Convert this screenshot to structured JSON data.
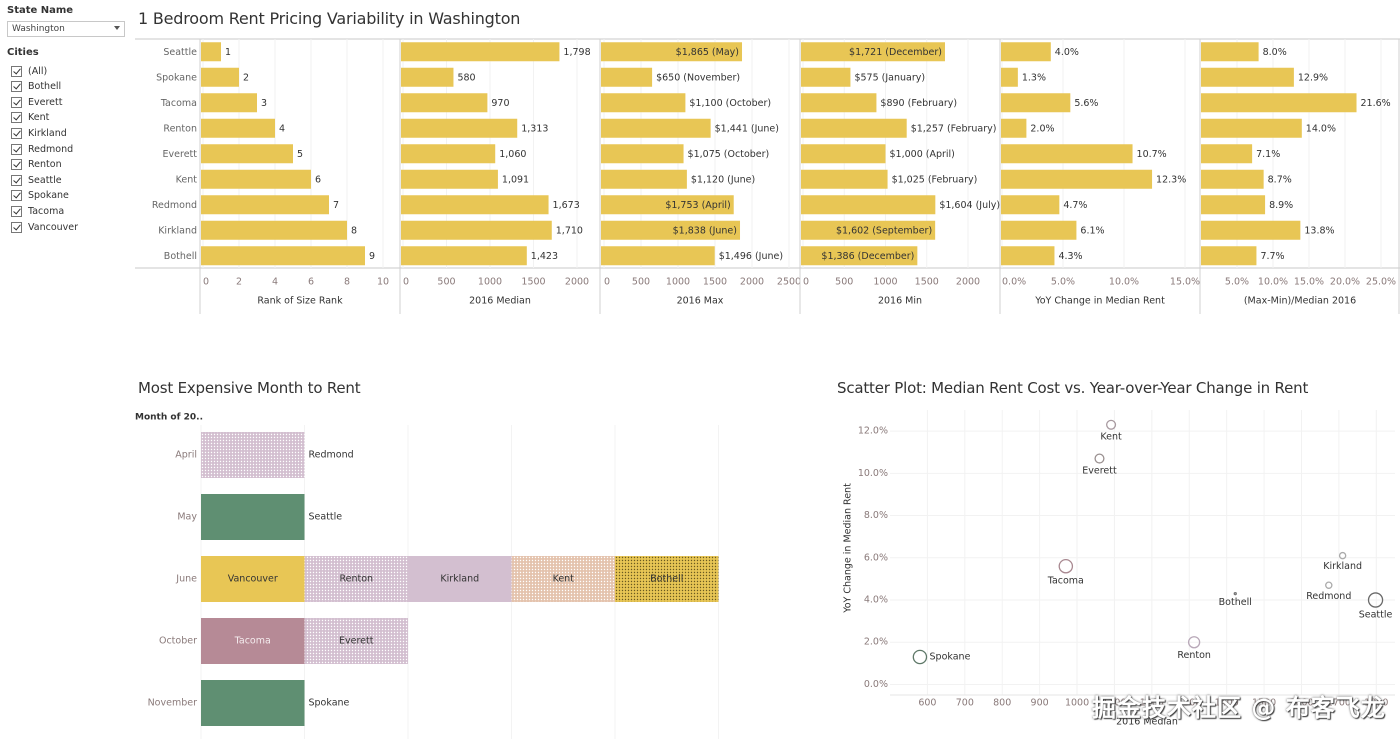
{
  "filters": {
    "state_label": "State Name",
    "state_value": "Washington",
    "cities_label": "Cities",
    "cities": [
      "(All)",
      "Bothell",
      "Everett",
      "Kent",
      "Kirkland",
      "Redmond",
      "Renton",
      "Seattle",
      "Spokane",
      "Tacoma",
      "Vancouver"
    ],
    "cities_checked": [
      true,
      true,
      true,
      true,
      true,
      true,
      true,
      true,
      true,
      true,
      true
    ]
  },
  "dashboard": {
    "top_title": "1 Bedroom Rent Pricing Variability in Washington",
    "month_title": "Most Expensive Month to Rent",
    "scatter_title": "Scatter Plot: Median Rent Cost vs. Year-over-Year Change in Rent"
  },
  "colors": {
    "bar": "#e8c655",
    "axis_text": "#8a7a7a",
    "green": "#5f8f72",
    "lilac": "#d3bfd0",
    "mauve": "#b68a96",
    "peach": "#e4c3ad"
  },
  "watermark": "掘金技术社区 @ 布客飞龙",
  "chart_data": [
    {
      "id": "variability",
      "type": "bar",
      "orientation": "horizontal",
      "title": "1 Bedroom Rent Pricing Variability in Washington",
      "categories": [
        "Seattle",
        "Spokane",
        "Tacoma",
        "Renton",
        "Everett",
        "Kent",
        "Redmond",
        "Kirkland",
        "Bothell"
      ],
      "panels": [
        {
          "xlabel": "Rank of Size Rank",
          "xlim": [
            0,
            10
          ],
          "ticks": [
            "0",
            "2",
            "4",
            "6",
            "8",
            "10"
          ],
          "tick_values": [
            0,
            2,
            4,
            6,
            8,
            10
          ],
          "values": [
            1,
            2,
            3,
            4,
            5,
            6,
            7,
            8,
            9
          ],
          "labels": [
            "1",
            "2",
            "3",
            "4",
            "5",
            "6",
            "7",
            "8",
            "9"
          ]
        },
        {
          "xlabel": "2016 Median",
          "xlim": [
            0,
            2000
          ],
          "ticks": [
            "0",
            "500",
            "1000",
            "1500",
            "2000"
          ],
          "tick_values": [
            0,
            500,
            1000,
            1500,
            2000
          ],
          "values": [
            1798,
            580,
            970,
            1313,
            1060,
            1091,
            1673,
            1710,
            1423
          ],
          "labels": [
            "1,798",
            "580",
            "970",
            "1,313",
            "1,060",
            "1,091",
            "1,673",
            "1,710",
            "1,423"
          ]
        },
        {
          "xlabel": "2016 Max",
          "xlim": [
            0,
            2500
          ],
          "ticks": [
            "0",
            "500",
            "1000",
            "1500",
            "2000",
            "2500"
          ],
          "tick_values": [
            0,
            500,
            1000,
            1500,
            2000,
            2500
          ],
          "values": [
            1865,
            650,
            1100,
            1441,
            1075,
            1120,
            1753,
            1838,
            1496
          ],
          "labels": [
            "$1,865 (May)",
            "$650 (November)",
            "$1,100 (October)",
            "$1,441 (June)",
            "$1,075 (October)",
            "$1,120 (June)",
            "$1,753 (April)",
            "$1,838 (June)",
            "$1,496 (June)"
          ],
          "inside": [
            true,
            false,
            false,
            false,
            false,
            false,
            true,
            true,
            false
          ]
        },
        {
          "xlabel": "2016 Min",
          "xlim": [
            0,
            2000
          ],
          "ticks": [
            "0",
            "500",
            "1000",
            "1500",
            "2000"
          ],
          "tick_values": [
            0,
            500,
            1000,
            1500,
            2000
          ],
          "values": [
            1721,
            575,
            890,
            1257,
            1000,
            1025,
            1604,
            1602,
            1386
          ],
          "labels": [
            "$1,721 (December)",
            "$575 (January)",
            "$890 (February)",
            "$1,257 (February)",
            "$1,000 (April)",
            "$1,025 (February)",
            "$1,604 (July)",
            "$1,602 (September)",
            "$1,386 (December)"
          ],
          "inside": [
            true,
            false,
            false,
            false,
            false,
            false,
            false,
            true,
            true
          ]
        },
        {
          "xlabel": "YoY Change in Median Rent",
          "xlim": [
            0,
            15
          ],
          "ticks": [
            "0.0%",
            "5.0%",
            "10.0%",
            "15.0%"
          ],
          "tick_values": [
            0,
            5,
            10,
            15
          ],
          "values": [
            4.0,
            1.3,
            5.6,
            2.0,
            10.7,
            12.3,
            4.7,
            6.1,
            4.3
          ],
          "labels": [
            "4.0%",
            "1.3%",
            "5.6%",
            "2.0%",
            "10.7%",
            "12.3%",
            "4.7%",
            "6.1%",
            "4.3%"
          ]
        },
        {
          "xlabel": "(Max-Min)/Median 2016",
          "xlim": [
            0,
            25
          ],
          "ticks": [
            "5.0%",
            "10.0%",
            "15.0%",
            "20.0%",
            "25.0%"
          ],
          "tick_values": [
            5,
            10,
            15,
            20,
            25
          ],
          "values": [
            8.0,
            12.9,
            21.6,
            14.0,
            7.1,
            8.7,
            8.9,
            13.8,
            7.7
          ],
          "labels": [
            "8.0%",
            "12.9%",
            "21.6%",
            "14.0%",
            "7.1%",
            "8.7%",
            "8.9%",
            "13.8%",
            "7.7%"
          ]
        }
      ]
    },
    {
      "id": "month",
      "type": "bar",
      "stacked": true,
      "title": "Most Expensive Month to Rent",
      "row_header": "Month of 20..",
      "categories": [
        "April",
        "May",
        "June",
        "October",
        "November"
      ],
      "rows": [
        {
          "month": "April",
          "segments": [
            {
              "city": "Redmond",
              "color": "lilac",
              "label_outside": true,
              "pattern": true
            }
          ]
        },
        {
          "month": "May",
          "segments": [
            {
              "city": "Seattle",
              "color": "green",
              "label_outside": true
            }
          ]
        },
        {
          "month": "June",
          "segments": [
            {
              "city": "Vancouver",
              "color": "bar"
            },
            {
              "city": "Renton",
              "color": "lilac",
              "pattern": true
            },
            {
              "city": "Kirkland",
              "color": "lilac"
            },
            {
              "city": "Kent",
              "color": "peach",
              "pattern": true
            },
            {
              "city": "Bothell",
              "color": "bar",
              "pattern": true
            }
          ]
        },
        {
          "month": "October",
          "segments": [
            {
              "city": "Tacoma",
              "color": "mauve",
              "light_text": true
            },
            {
              "city": "Everett",
              "color": "lilac",
              "pattern": true
            }
          ]
        },
        {
          "month": "November",
          "segments": [
            {
              "city": "Spokane",
              "color": "green",
              "label_outside": true
            }
          ]
        }
      ]
    },
    {
      "id": "scatter",
      "type": "scatter",
      "title": "Scatter Plot: Median Rent Cost vs. Year-over-Year Change in Rent",
      "xlabel": "2016 Median",
      "ylabel": "YoY Change in Median Rent",
      "xlim": [
        500,
        1850
      ],
      "ylim": [
        -0.5,
        13
      ],
      "xticks": [
        "600",
        "700",
        "800",
        "900",
        "1000",
        "1100",
        "1200",
        "1300",
        "1400",
        "1500",
        "1600",
        "1700",
        "1800"
      ],
      "xtick_values": [
        600,
        700,
        800,
        900,
        1000,
        1100,
        1200,
        1300,
        1400,
        1500,
        1600,
        1700,
        1800
      ],
      "yticks": [
        "0.0%",
        "2.0%",
        "4.0%",
        "6.0%",
        "8.0%",
        "10.0%",
        "12.0%"
      ],
      "ytick_values": [
        0,
        2,
        4,
        6,
        8,
        10,
        12
      ],
      "points": [
        {
          "label": "Kent",
          "x": 1091,
          "y": 12.3,
          "size": 2,
          "color": "#a89aa0",
          "label_pos": "below"
        },
        {
          "label": "Everett",
          "x": 1060,
          "y": 10.7,
          "size": 2,
          "color": "#9a9090",
          "label_pos": "below"
        },
        {
          "label": "Tacoma",
          "x": 970,
          "y": 5.6,
          "size": 3,
          "color": "#a88890",
          "label_pos": "below"
        },
        {
          "label": "Spokane",
          "x": 580,
          "y": 1.3,
          "size": 3,
          "color": "#5e7868",
          "label_pos": "right"
        },
        {
          "label": "Renton",
          "x": 1313,
          "y": 2.0,
          "size": 2.5,
          "color": "#b8a8b8",
          "label_pos": "below"
        },
        {
          "label": "Bothell",
          "x": 1423,
          "y": 4.3,
          "size": 0.4,
          "color": "#777777",
          "label_pos": "below"
        },
        {
          "label": "Kirkland",
          "x": 1710,
          "y": 6.1,
          "size": 1.4,
          "color": "#aaaaaa",
          "label_pos": "below"
        },
        {
          "label": "Redmond",
          "x": 1673,
          "y": 4.7,
          "size": 1.4,
          "color": "#aaaaaa",
          "label_pos": "below"
        },
        {
          "label": "Seattle",
          "x": 1798,
          "y": 4.0,
          "size": 3.2,
          "color": "#6a6a6a",
          "label_pos": "below"
        }
      ]
    }
  ]
}
